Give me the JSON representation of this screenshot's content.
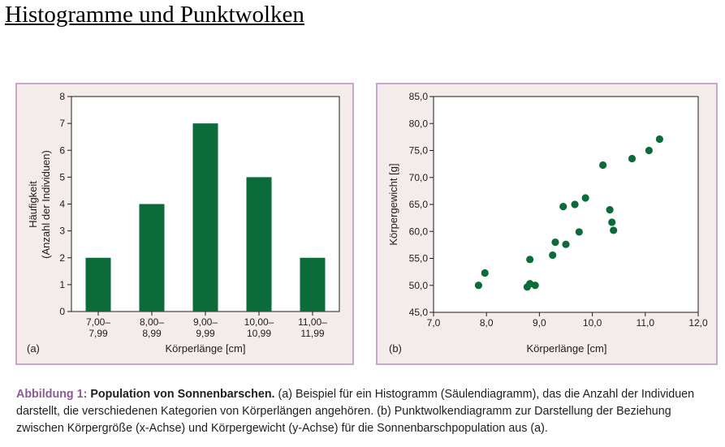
{
  "page_title": "Histogramme und Punktwolken",
  "colors": {
    "mark": "#0b6b3a",
    "panel_bg": "#f3ecea",
    "panel_border": "#c9a7cc",
    "plot_bg": "#ffffff",
    "caption_label": "#8c5b93"
  },
  "chart_data": [
    {
      "type": "bar",
      "panel_label": "(a)",
      "title": "",
      "xlabel": "Körperlänge [cm]",
      "ylabel_line1": "Häufigkeit",
      "ylabel_line2": "(Anzahl der Individuen)",
      "categories": [
        {
          "line1": "7,00–",
          "line2": "7,99"
        },
        {
          "line1": "8,00–",
          "line2": "8,99"
        },
        {
          "line1": "9,00–",
          "line2": "9,99"
        },
        {
          "line1": "10,00–",
          "line2": "10,99"
        },
        {
          "line1": "11,00–",
          "line2": "11,99"
        }
      ],
      "values": [
        2,
        4,
        7,
        5,
        2
      ],
      "ylim": [
        0,
        8
      ],
      "yticks": [
        "0",
        "1",
        "2",
        "3",
        "4",
        "5",
        "6",
        "7",
        "8"
      ],
      "grid": false
    },
    {
      "type": "scatter",
      "panel_label": "(b)",
      "title": "",
      "xlabel": "Körperlänge [cm]",
      "ylabel": "Körpergewicht [g]",
      "xlim": [
        7.0,
        12.0
      ],
      "ylim": [
        45.0,
        85.0
      ],
      "xticks": [
        {
          "v": 7,
          "label": "7,0"
        },
        {
          "v": 8,
          "label": "8,0"
        },
        {
          "v": 9,
          "label": "9,0"
        },
        {
          "v": 10,
          "label": "10,0"
        },
        {
          "v": 11,
          "label": "11,0"
        },
        {
          "v": 12,
          "label": "12,0"
        }
      ],
      "yticks": [
        {
          "v": 45,
          "label": "45,0"
        },
        {
          "v": 50,
          "label": "50,0"
        },
        {
          "v": 55,
          "label": "55,0"
        },
        {
          "v": 60,
          "label": "60,0"
        },
        {
          "v": 65,
          "label": "65,0"
        },
        {
          "v": 70,
          "label": "70,0"
        },
        {
          "v": 75,
          "label": "75,0"
        },
        {
          "v": 80,
          "label": "80,0"
        },
        {
          "v": 85,
          "label": "85,0"
        }
      ],
      "points": [
        [
          7.85,
          50.0
        ],
        [
          7.97,
          52.3
        ],
        [
          8.77,
          49.7
        ],
        [
          8.82,
          50.3
        ],
        [
          8.92,
          50.0
        ],
        [
          8.82,
          54.8
        ],
        [
          9.25,
          55.6
        ],
        [
          9.3,
          58.0
        ],
        [
          9.5,
          57.6
        ],
        [
          9.45,
          64.6
        ],
        [
          9.67,
          65.0
        ],
        [
          9.75,
          59.9
        ],
        [
          9.87,
          66.2
        ],
        [
          10.2,
          72.3
        ],
        [
          10.33,
          64.0
        ],
        [
          10.37,
          61.7
        ],
        [
          10.4,
          60.2
        ],
        [
          10.75,
          73.5
        ],
        [
          11.07,
          75.0
        ],
        [
          11.27,
          77.1
        ]
      ],
      "grid": false
    }
  ],
  "caption": {
    "label": "Abbildung 1:",
    "bold": "Population von Sonnenbarschen.",
    "text": "(a) Beispiel für ein Histogramm (Säulendiagramm), das die Anzahl der Individuen darstellt, die verschiedenen Kategorien von Körperlängen angehören. (b) Punktwolkendiagramm zur Darstellung der Beziehung zwischen Körpergröße (x-Achse) und Körpergewicht (y-Achse) für die Sonnenbarschpopulation aus (a)."
  }
}
